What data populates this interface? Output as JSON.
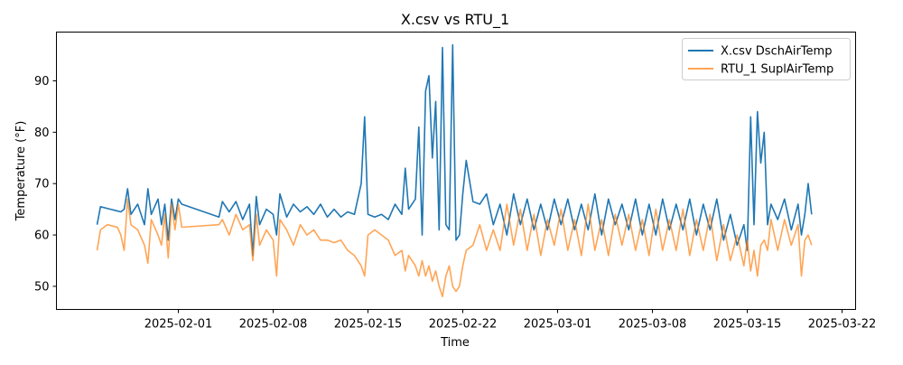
{
  "chart_data": {
    "type": "line",
    "title": "X.csv vs RTU_1",
    "xlabel": "Time",
    "ylabel": "Temperature (°F)",
    "xlim": [
      "2025-01-23",
      "2025-03-23"
    ],
    "ylim": [
      45.5,
      99.5
    ],
    "x_ticks": [
      "2025-02-01",
      "2025-02-08",
      "2025-02-15",
      "2025-02-22",
      "2025-03-01",
      "2025-03-08",
      "2025-03-15",
      "2025-03-22"
    ],
    "y_ticks": [
      50,
      60,
      70,
      80,
      90
    ],
    "grid": false,
    "legend_position": "top-right",
    "series": [
      {
        "name": "X.csv DschAirTemp",
        "color": "#1f77b4",
        "opacity": 1.0,
        "points": [
          [
            "2025-01-26 00:00",
            62
          ],
          [
            "2025-01-26 06:00",
            65.5
          ],
          [
            "2025-01-27 00:00",
            65
          ],
          [
            "2025-01-27 18:00",
            64.5
          ],
          [
            "2025-01-28 00:00",
            65
          ],
          [
            "2025-01-28 06:00",
            69
          ],
          [
            "2025-01-28 12:00",
            64
          ],
          [
            "2025-01-29 00:00",
            66
          ],
          [
            "2025-01-29 12:00",
            62
          ],
          [
            "2025-01-29 18:00",
            69
          ],
          [
            "2025-01-30 00:00",
            64
          ],
          [
            "2025-01-30 12:00",
            67
          ],
          [
            "2025-01-30 18:00",
            62
          ],
          [
            "2025-01-31 00:00",
            66
          ],
          [
            "2025-01-31 06:00",
            59
          ],
          [
            "2025-01-31 12:00",
            67
          ],
          [
            "2025-01-31 18:00",
            63
          ],
          [
            "2025-02-01 00:00",
            67
          ],
          [
            "2025-02-01 06:00",
            66
          ],
          [
            "2025-02-04 00:00",
            63.5
          ],
          [
            "2025-02-04 06:00",
            66.5
          ],
          [
            "2025-02-04 18:00",
            64.5
          ],
          [
            "2025-02-05 06:00",
            66.5
          ],
          [
            "2025-02-05 18:00",
            63
          ],
          [
            "2025-02-06 06:00",
            66
          ],
          [
            "2025-02-06 12:00",
            56
          ],
          [
            "2025-02-06 18:00",
            67.5
          ],
          [
            "2025-02-07 00:00",
            62
          ],
          [
            "2025-02-07 12:00",
            65
          ],
          [
            "2025-02-08 00:00",
            64
          ],
          [
            "2025-02-08 06:00",
            60
          ],
          [
            "2025-02-08 12:00",
            68
          ],
          [
            "2025-02-09 00:00",
            63.5
          ],
          [
            "2025-02-09 12:00",
            66
          ],
          [
            "2025-02-10 00:00",
            64.5
          ],
          [
            "2025-02-10 12:00",
            65.5
          ],
          [
            "2025-02-11 00:00",
            64
          ],
          [
            "2025-02-11 12:00",
            66
          ],
          [
            "2025-02-12 00:00",
            63.5
          ],
          [
            "2025-02-12 12:00",
            65
          ],
          [
            "2025-02-13 00:00",
            63.5
          ],
          [
            "2025-02-13 12:00",
            64.5
          ],
          [
            "2025-02-14 00:00",
            64
          ],
          [
            "2025-02-14 12:00",
            70
          ],
          [
            "2025-02-14 18:00",
            83
          ],
          [
            "2025-02-15 00:00",
            64
          ],
          [
            "2025-02-15 12:00",
            63.5
          ],
          [
            "2025-02-16 00:00",
            64
          ],
          [
            "2025-02-16 12:00",
            63
          ],
          [
            "2025-02-17 00:00",
            66
          ],
          [
            "2025-02-17 12:00",
            64
          ],
          [
            "2025-02-17 18:00",
            73
          ],
          [
            "2025-02-18 00:00",
            65
          ],
          [
            "2025-02-18 12:00",
            67
          ],
          [
            "2025-02-18 18:00",
            81
          ],
          [
            "2025-02-19 00:00",
            60
          ],
          [
            "2025-02-19 06:00",
            88
          ],
          [
            "2025-02-19 12:00",
            91
          ],
          [
            "2025-02-19 18:00",
            75
          ],
          [
            "2025-02-20 00:00",
            86
          ],
          [
            "2025-02-20 06:00",
            61
          ],
          [
            "2025-02-20 12:00",
            96.5
          ],
          [
            "2025-02-20 18:00",
            62
          ],
          [
            "2025-02-21 00:00",
            61
          ],
          [
            "2025-02-21 06:00",
            97
          ],
          [
            "2025-02-21 12:00",
            59
          ],
          [
            "2025-02-21 18:00",
            60
          ],
          [
            "2025-02-22 00:00",
            68
          ],
          [
            "2025-02-22 06:00",
            74.5
          ],
          [
            "2025-02-22 18:00",
            66.5
          ],
          [
            "2025-02-23 06:00",
            66
          ],
          [
            "2025-02-23 18:00",
            68
          ],
          [
            "2025-02-24 06:00",
            62
          ],
          [
            "2025-02-24 18:00",
            66
          ],
          [
            "2025-02-25 06:00",
            60
          ],
          [
            "2025-02-25 18:00",
            68
          ],
          [
            "2025-02-26 06:00",
            62
          ],
          [
            "2025-02-26 18:00",
            67
          ],
          [
            "2025-02-27 06:00",
            61
          ],
          [
            "2025-02-27 18:00",
            66
          ],
          [
            "2025-02-28 06:00",
            61
          ],
          [
            "2025-02-28 18:00",
            67
          ],
          [
            "2025-03-01 06:00",
            62
          ],
          [
            "2025-03-01 18:00",
            67
          ],
          [
            "2025-03-02 06:00",
            61
          ],
          [
            "2025-03-02 18:00",
            66
          ],
          [
            "2025-03-03 06:00",
            61
          ],
          [
            "2025-03-03 18:00",
            68
          ],
          [
            "2025-03-04 06:00",
            60
          ],
          [
            "2025-03-04 18:00",
            67
          ],
          [
            "2025-03-05 06:00",
            62
          ],
          [
            "2025-03-05 18:00",
            66
          ],
          [
            "2025-03-06 06:00",
            61
          ],
          [
            "2025-03-06 18:00",
            67
          ],
          [
            "2025-03-07 06:00",
            60
          ],
          [
            "2025-03-07 18:00",
            66
          ],
          [
            "2025-03-08 06:00",
            60
          ],
          [
            "2025-03-08 18:00",
            67
          ],
          [
            "2025-03-09 06:00",
            61
          ],
          [
            "2025-03-09 18:00",
            66
          ],
          [
            "2025-03-10 06:00",
            61
          ],
          [
            "2025-03-10 18:00",
            67
          ],
          [
            "2025-03-11 06:00",
            60
          ],
          [
            "2025-03-11 18:00",
            66
          ],
          [
            "2025-03-12 06:00",
            61
          ],
          [
            "2025-03-12 18:00",
            67
          ],
          [
            "2025-03-13 06:00",
            59
          ],
          [
            "2025-03-13 18:00",
            64
          ],
          [
            "2025-03-14 06:00",
            58
          ],
          [
            "2025-03-14 18:00",
            62
          ],
          [
            "2025-03-15 00:00",
            57
          ],
          [
            "2025-03-15 06:00",
            83
          ],
          [
            "2025-03-15 12:00",
            62
          ],
          [
            "2025-03-15 18:00",
            84
          ],
          [
            "2025-03-16 00:00",
            74
          ],
          [
            "2025-03-16 06:00",
            80
          ],
          [
            "2025-03-16 12:00",
            62
          ],
          [
            "2025-03-16 18:00",
            66
          ],
          [
            "2025-03-17 06:00",
            63
          ],
          [
            "2025-03-17 18:00",
            67
          ],
          [
            "2025-03-18 06:00",
            61
          ],
          [
            "2025-03-18 18:00",
            66
          ],
          [
            "2025-03-19 00:00",
            60
          ],
          [
            "2025-03-19 06:00",
            64
          ],
          [
            "2025-03-19 12:00",
            70
          ],
          [
            "2025-03-19 18:00",
            64
          ]
        ]
      },
      {
        "name": "RTU_1 SuplAirTemp",
        "color": "#ff7f0e",
        "opacity": 0.7,
        "points": [
          [
            "2025-01-26 00:00",
            57
          ],
          [
            "2025-01-26 06:00",
            61
          ],
          [
            "2025-01-26 18:00",
            62
          ],
          [
            "2025-01-27 12:00",
            61.5
          ],
          [
            "2025-01-27 18:00",
            60
          ],
          [
            "2025-01-28 00:00",
            57
          ],
          [
            "2025-01-28 06:00",
            67
          ],
          [
            "2025-01-28 12:00",
            62
          ],
          [
            "2025-01-29 00:00",
            61
          ],
          [
            "2025-01-29 12:00",
            58
          ],
          [
            "2025-01-29 18:00",
            54.5
          ],
          [
            "2025-01-30 00:00",
            63
          ],
          [
            "2025-01-30 12:00",
            60
          ],
          [
            "2025-01-30 18:00",
            58
          ],
          [
            "2025-01-31 00:00",
            64
          ],
          [
            "2025-01-31 06:00",
            55.5
          ],
          [
            "2025-01-31 12:00",
            66
          ],
          [
            "2025-01-31 18:00",
            61
          ],
          [
            "2025-02-01 00:00",
            66
          ],
          [
            "2025-02-01 06:00",
            61.5
          ],
          [
            "2025-02-04 00:00",
            62
          ],
          [
            "2025-02-04 06:00",
            63
          ],
          [
            "2025-02-04 18:00",
            60
          ],
          [
            "2025-02-05 06:00",
            64
          ],
          [
            "2025-02-05 18:00",
            61
          ],
          [
            "2025-02-06 06:00",
            62
          ],
          [
            "2025-02-06 12:00",
            55
          ],
          [
            "2025-02-06 18:00",
            64
          ],
          [
            "2025-02-07 00:00",
            58
          ],
          [
            "2025-02-07 12:00",
            61
          ],
          [
            "2025-02-08 00:00",
            59
          ],
          [
            "2025-02-08 06:00",
            52
          ],
          [
            "2025-02-08 12:00",
            63
          ],
          [
            "2025-02-09 00:00",
            61
          ],
          [
            "2025-02-09 12:00",
            58
          ],
          [
            "2025-02-10 00:00",
            62
          ],
          [
            "2025-02-10 12:00",
            60
          ],
          [
            "2025-02-11 00:00",
            61
          ],
          [
            "2025-02-11 12:00",
            59
          ],
          [
            "2025-02-12 00:00",
            59
          ],
          [
            "2025-02-12 12:00",
            58.5
          ],
          [
            "2025-02-13 00:00",
            59
          ],
          [
            "2025-02-13 12:00",
            57
          ],
          [
            "2025-02-14 00:00",
            56
          ],
          [
            "2025-02-14 12:00",
            54
          ],
          [
            "2025-02-14 18:00",
            52
          ],
          [
            "2025-02-15 00:00",
            60
          ],
          [
            "2025-02-15 12:00",
            61
          ],
          [
            "2025-02-16 00:00",
            60
          ],
          [
            "2025-02-16 12:00",
            59
          ],
          [
            "2025-02-17 00:00",
            56
          ],
          [
            "2025-02-17 12:00",
            57
          ],
          [
            "2025-02-17 18:00",
            53
          ],
          [
            "2025-02-18 00:00",
            56
          ],
          [
            "2025-02-18 12:00",
            54
          ],
          [
            "2025-02-18 18:00",
            52
          ],
          [
            "2025-02-19 00:00",
            55
          ],
          [
            "2025-02-19 06:00",
            52
          ],
          [
            "2025-02-19 12:00",
            54
          ],
          [
            "2025-02-19 18:00",
            51
          ],
          [
            "2025-02-20 00:00",
            53
          ],
          [
            "2025-02-20 06:00",
            50
          ],
          [
            "2025-02-20 12:00",
            48
          ],
          [
            "2025-02-20 18:00",
            52
          ],
          [
            "2025-02-21 00:00",
            54
          ],
          [
            "2025-02-21 06:00",
            50
          ],
          [
            "2025-02-21 12:00",
            49
          ],
          [
            "2025-02-21 18:00",
            50
          ],
          [
            "2025-02-22 00:00",
            54
          ],
          [
            "2025-02-22 06:00",
            57
          ],
          [
            "2025-02-22 18:00",
            58
          ],
          [
            "2025-02-23 06:00",
            62
          ],
          [
            "2025-02-23 18:00",
            57
          ],
          [
            "2025-02-24 06:00",
            61
          ],
          [
            "2025-02-24 18:00",
            57
          ],
          [
            "2025-02-25 06:00",
            66
          ],
          [
            "2025-02-25 18:00",
            58
          ],
          [
            "2025-02-26 06:00",
            65
          ],
          [
            "2025-02-26 18:00",
            57
          ],
          [
            "2025-02-27 06:00",
            64
          ],
          [
            "2025-02-27 18:00",
            56
          ],
          [
            "2025-02-28 06:00",
            63
          ],
          [
            "2025-02-28 18:00",
            58
          ],
          [
            "2025-03-01 06:00",
            65
          ],
          [
            "2025-03-01 18:00",
            57
          ],
          [
            "2025-03-02 06:00",
            63
          ],
          [
            "2025-03-02 18:00",
            56
          ],
          [
            "2025-03-03 06:00",
            66
          ],
          [
            "2025-03-03 18:00",
            57
          ],
          [
            "2025-03-04 06:00",
            63
          ],
          [
            "2025-03-04 18:00",
            56
          ],
          [
            "2025-03-05 06:00",
            64
          ],
          [
            "2025-03-05 18:00",
            58
          ],
          [
            "2025-03-06 06:00",
            64
          ],
          [
            "2025-03-06 18:00",
            57
          ],
          [
            "2025-03-07 06:00",
            63
          ],
          [
            "2025-03-07 18:00",
            56
          ],
          [
            "2025-03-08 06:00",
            65
          ],
          [
            "2025-03-08 18:00",
            57
          ],
          [
            "2025-03-09 06:00",
            63
          ],
          [
            "2025-03-09 18:00",
            57
          ],
          [
            "2025-03-10 06:00",
            65
          ],
          [
            "2025-03-10 18:00",
            56
          ],
          [
            "2025-03-11 06:00",
            63
          ],
          [
            "2025-03-11 18:00",
            57
          ],
          [
            "2025-03-12 06:00",
            64
          ],
          [
            "2025-03-12 18:00",
            55
          ],
          [
            "2025-03-13 06:00",
            62
          ],
          [
            "2025-03-13 18:00",
            55
          ],
          [
            "2025-03-14 06:00",
            60
          ],
          [
            "2025-03-14 18:00",
            54
          ],
          [
            "2025-03-15 00:00",
            59
          ],
          [
            "2025-03-15 06:00",
            53
          ],
          [
            "2025-03-15 12:00",
            57
          ],
          [
            "2025-03-15 18:00",
            52
          ],
          [
            "2025-03-16 00:00",
            58
          ],
          [
            "2025-03-16 06:00",
            59
          ],
          [
            "2025-03-16 12:00",
            57
          ],
          [
            "2025-03-16 18:00",
            63
          ],
          [
            "2025-03-17 06:00",
            57
          ],
          [
            "2025-03-17 18:00",
            63
          ],
          [
            "2025-03-18 06:00",
            58
          ],
          [
            "2025-03-18 18:00",
            62
          ],
          [
            "2025-03-19 00:00",
            52
          ],
          [
            "2025-03-19 06:00",
            59
          ],
          [
            "2025-03-19 12:00",
            60
          ],
          [
            "2025-03-19 18:00",
            58
          ]
        ]
      }
    ]
  }
}
